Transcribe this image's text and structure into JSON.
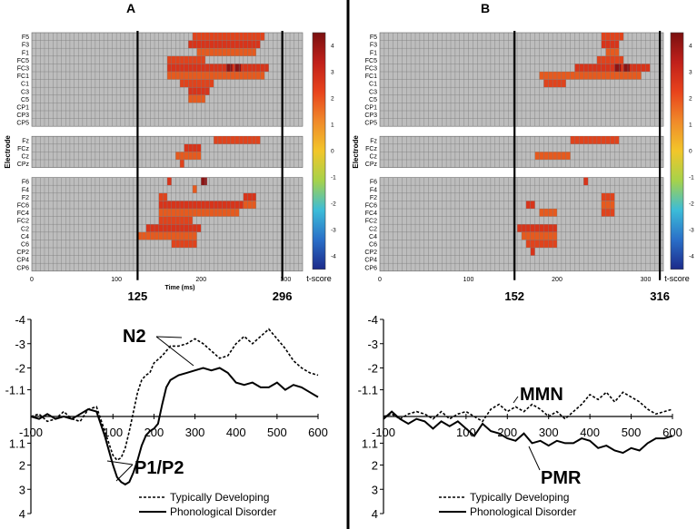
{
  "divider_color": "#000000",
  "colorbar": {
    "label": "t-score",
    "ticks": [
      "4",
      "3",
      "2",
      "1",
      "0",
      "-1",
      "-2",
      "-3",
      "-4"
    ],
    "stops": [
      "#7a1010",
      "#c0201a",
      "#e8431c",
      "#f08a2a",
      "#f2c62a",
      "#a6d24a",
      "#3cbcd8",
      "#2a6fc8",
      "#1c2a8a"
    ]
  },
  "chart_data": [
    {
      "type": "heatmap",
      "panel_label": "A",
      "ylabel": "Electrode",
      "xlabel": "Time (ms)",
      "x_ticks": [
        "0",
        "100",
        "200",
        "300"
      ],
      "xlim": [
        0,
        320
      ],
      "markers": [
        125,
        296
      ],
      "marker_labels": [
        "125",
        "296"
      ],
      "groups": [
        [
          "F5",
          "F3",
          "F1",
          "FC5",
          "FC3",
          "FC1",
          "C1",
          "C3",
          "C5",
          "CP1",
          "CP3",
          "CP5"
        ],
        [
          "Fz",
          "FCz",
          "Cz",
          "CPz"
        ],
        [
          "F6",
          "F4",
          "F2",
          "FC6",
          "FC4",
          "FC2",
          "C2",
          "C4",
          "C6",
          "CP2",
          "CP4",
          "CP6"
        ]
      ],
      "sig_ranges": [
        [
          [
            190,
            275
          ]
        ],
        [
          [
            185,
            270
          ]
        ],
        [
          [
            195,
            265
          ]
        ],
        [
          [
            160,
            205
          ]
        ],
        [
          [
            160,
            280
          ]
        ],
        [
          [
            160,
            275
          ]
        ],
        [
          [
            175,
            215
          ]
        ],
        [
          [
            185,
            210
          ]
        ],
        [
          [
            185,
            205
          ]
        ],
        [],
        [],
        [],
        [
          [
            215,
            270
          ]
        ],
        [
          [
            180,
            200
          ]
        ],
        [
          [
            170,
            200
          ]
        ],
        [
          [
            175,
            180
          ]
        ],
        [
          [
            160,
            165
          ]
        ],
        [
          [
            190,
            195
          ]
        ],
        [
          [
            150,
            160
          ],
          [
            250,
            265
          ]
        ],
        [
          [
            150,
            250
          ],
          [
            250,
            265
          ]
        ],
        [
          [
            150,
            245
          ]
        ],
        [
          [
            150,
            190
          ]
        ],
        [
          [
            135,
            200
          ]
        ],
        [
          [
            125,
            195
          ]
        ],
        [
          [
            165,
            195
          ]
        ],
        [],
        [],
        []
      ],
      "peak_cells": [
        [
          4,
          230
        ],
        [
          4,
          240
        ],
        [
          16,
          200
        ]
      ]
    },
    {
      "type": "heatmap",
      "panel_label": "B",
      "ylabel": "Electrode",
      "xlabel": "",
      "x_ticks": [
        "0",
        "100",
        "200",
        "300"
      ],
      "xlim": [
        0,
        320
      ],
      "markers": [
        152,
        316
      ],
      "marker_labels": [
        "152",
        "316"
      ],
      "groups": [
        [
          "F5",
          "F3",
          "F1",
          "FC5",
          "FC3",
          "FC1",
          "C1",
          "C3",
          "C5",
          "CP1",
          "CP3",
          "CP5"
        ],
        [
          "Fz",
          "FCz",
          "Cz",
          "CPz"
        ],
        [
          "F6",
          "F4",
          "F2",
          "FC6",
          "FC4",
          "FC2",
          "C2",
          "C4",
          "C6",
          "CP2",
          "CP4",
          "CP6"
        ]
      ],
      "sig_ranges": [
        [
          [
            250,
            275
          ]
        ],
        [
          [
            250,
            270
          ]
        ],
        [
          [
            255,
            270
          ]
        ],
        [
          [
            245,
            275
          ]
        ],
        [
          [
            220,
            305
          ]
        ],
        [
          [
            180,
            295
          ]
        ],
        [
          [
            185,
            210
          ]
        ],
        [],
        [],
        [],
        [],
        [],
        [
          [
            215,
            270
          ]
        ],
        [],
        [
          [
            175,
            215
          ]
        ],
        [],
        [
          [
            230,
            235
          ]
        ],
        [],
        [
          [
            250,
            265
          ]
        ],
        [
          [
            165,
            175
          ],
          [
            250,
            265
          ]
        ],
        [
          [
            180,
            200
          ],
          [
            250,
            265
          ]
        ],
        [],
        [
          [
            155,
            200
          ]
        ],
        [
          [
            160,
            200
          ]
        ],
        [
          [
            165,
            200
          ]
        ],
        [
          [
            170,
            175
          ]
        ],
        [],
        []
      ],
      "peak_cells": [
        [
          4,
          265
        ],
        [
          4,
          275
        ]
      ]
    },
    {
      "type": "line",
      "xlabel": "",
      "ylabel": "",
      "x_ticks": [
        "-100",
        "100",
        "200",
        "300",
        "400",
        "500",
        "600"
      ],
      "y_ticks": [
        "-4",
        "-3",
        "-2",
        "-1.1",
        "1.1",
        "2",
        "3",
        "4"
      ],
      "xlim": [
        -100,
        600
      ],
      "ylim": [
        -4,
        4
      ],
      "annotations": [
        "N2",
        "P1/P2"
      ],
      "legend": [
        "Typically Developing",
        "Phonological Disorder"
      ],
      "series": [
        {
          "name": "Typically Developing",
          "style": "dashed",
          "x": [
            -100,
            -80,
            -60,
            -40,
            -20,
            0,
            20,
            40,
            60,
            80,
            100,
            110,
            120,
            130,
            140,
            150,
            160,
            170,
            180,
            190,
            200,
            220,
            240,
            260,
            280,
            300,
            320,
            340,
            360,
            380,
            400,
            420,
            440,
            460,
            480,
            500,
            520,
            540,
            560,
            580,
            600
          ],
          "y": [
            0,
            -0.1,
            0.2,
            0.1,
            -0.2,
            0.1,
            0.2,
            -0.3,
            -0.4,
            0.6,
            1.6,
            1.8,
            1.7,
            1.3,
            0.6,
            -0.2,
            -1.0,
            -1.5,
            -1.7,
            -1.8,
            -2.2,
            -2.5,
            -2.9,
            -2.9,
            -3.0,
            -3.2,
            -3.0,
            -2.7,
            -2.4,
            -2.5,
            -3.0,
            -3.3,
            -3.0,
            -3.3,
            -3.6,
            -3.2,
            -2.8,
            -2.3,
            -2.0,
            -1.8,
            -1.7
          ]
        },
        {
          "name": "Phonological Disorder",
          "style": "solid",
          "x": [
            -100,
            -80,
            -60,
            -40,
            -20,
            0,
            20,
            40,
            60,
            80,
            100,
            110,
            120,
            130,
            140,
            150,
            160,
            170,
            180,
            190,
            200,
            210,
            220,
            230,
            240,
            260,
            280,
            300,
            320,
            340,
            360,
            380,
            400,
            420,
            440,
            460,
            480,
            500,
            520,
            540,
            560,
            580,
            600
          ],
          "y": [
            0,
            0.1,
            -0.1,
            0.1,
            0.0,
            0.1,
            -0.1,
            -0.3,
            -0.2,
            0.8,
            2.0,
            2.5,
            2.7,
            2.8,
            2.7,
            2.3,
            1.8,
            1.2,
            0.8,
            0.6,
            0.5,
            0.3,
            -0.5,
            -1.2,
            -1.5,
            -1.7,
            -1.8,
            -1.9,
            -2.0,
            -1.9,
            -2.0,
            -1.8,
            -1.4,
            -1.3,
            -1.4,
            -1.2,
            -1.2,
            -1.4,
            -1.1,
            -1.3,
            -1.2,
            -1.0,
            -0.8
          ]
        }
      ]
    },
    {
      "type": "line",
      "xlabel": "",
      "ylabel": "",
      "x_ticks": [
        "-100",
        "100",
        "200",
        "300",
        "400",
        "500",
        "600"
      ],
      "y_ticks": [
        "-4",
        "-3",
        "-2",
        "-1.1",
        "1.1",
        "2",
        "3",
        "4"
      ],
      "xlim": [
        -100,
        600
      ],
      "ylim": [
        -4,
        4
      ],
      "annotations": [
        "MMN",
        "PMR"
      ],
      "legend": [
        "Typically Developing",
        "Phonological Disorder"
      ],
      "series": [
        {
          "name": "Typically Developing",
          "style": "dashed",
          "x": [
            -100,
            -80,
            -60,
            -40,
            -20,
            0,
            20,
            40,
            60,
            80,
            100,
            120,
            140,
            160,
            180,
            200,
            220,
            240,
            260,
            280,
            300,
            320,
            340,
            360,
            380,
            400,
            420,
            440,
            460,
            480,
            500,
            520,
            540,
            560,
            580,
            600
          ],
          "y": [
            0,
            -0.1,
            0.1,
            -0.1,
            -0.2,
            -0.1,
            0.1,
            -0.2,
            0.1,
            -0.1,
            -0.2,
            0.0,
            0.2,
            -0.3,
            -0.5,
            -0.2,
            -0.4,
            -0.2,
            -0.5,
            -0.3,
            0.0,
            -0.2,
            0.1,
            -0.2,
            -0.5,
            -0.9,
            -0.7,
            -1.0,
            -0.6,
            -1.0,
            -0.8,
            -0.6,
            -0.3,
            -0.1,
            -0.2,
            -0.3
          ]
        },
        {
          "name": "Phonological Disorder",
          "style": "solid",
          "x": [
            -100,
            -80,
            -60,
            -40,
            -20,
            0,
            20,
            40,
            60,
            80,
            100,
            120,
            140,
            160,
            180,
            200,
            220,
            240,
            260,
            280,
            300,
            320,
            340,
            360,
            380,
            400,
            420,
            440,
            460,
            480,
            500,
            520,
            540,
            560,
            580,
            600
          ],
          "y": [
            0.1,
            -0.2,
            0.1,
            0.3,
            0.1,
            0.2,
            0.5,
            0.2,
            0.4,
            0.2,
            0.5,
            0.8,
            0.3,
            0.6,
            0.7,
            0.9,
            1.0,
            0.7,
            1.1,
            1.0,
            1.2,
            1.0,
            1.1,
            1.1,
            0.9,
            1.0,
            1.3,
            1.2,
            1.4,
            1.5,
            1.3,
            1.4,
            1.1,
            0.9,
            0.9,
            0.8
          ]
        }
      ]
    }
  ]
}
